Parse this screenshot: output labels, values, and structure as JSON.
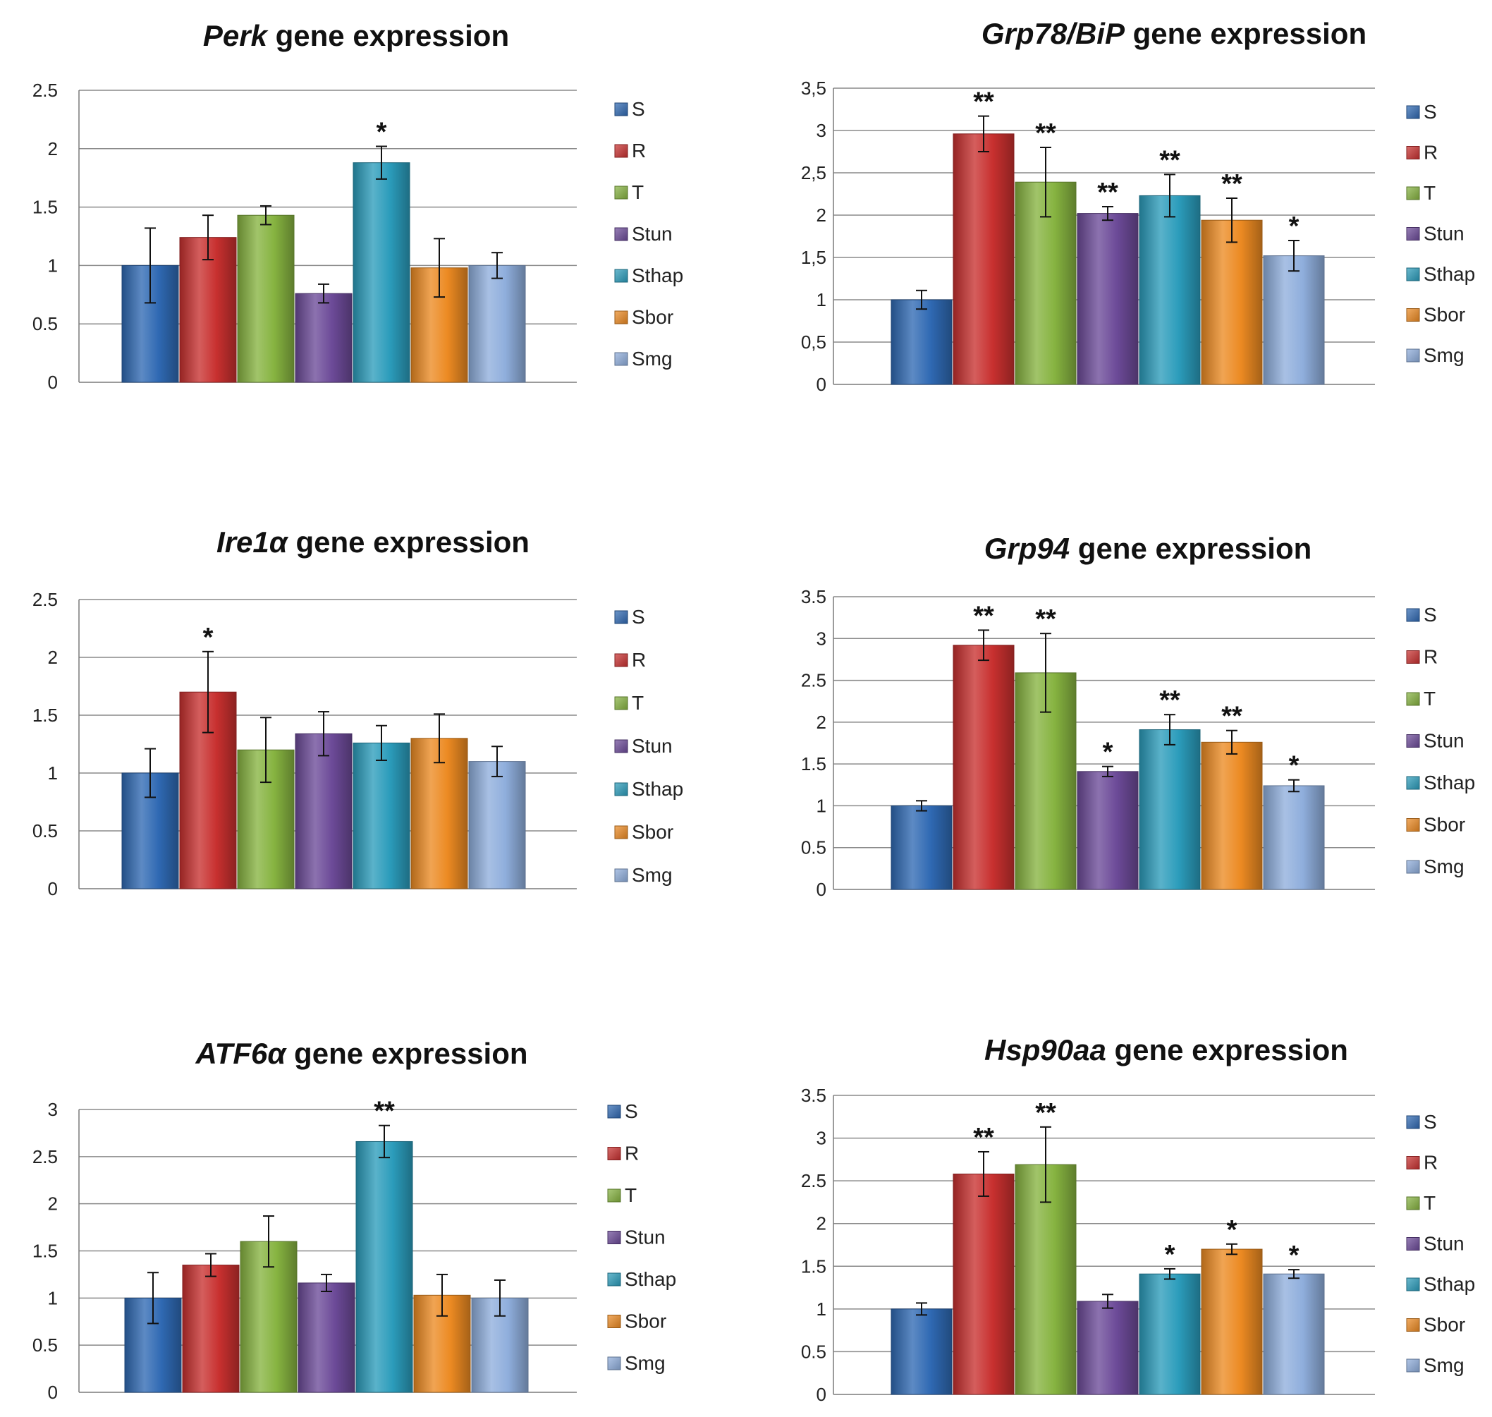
{
  "legend_labels": [
    "S",
    "R",
    "T",
    "Stun",
    "Sthap",
    "Sbor",
    "Smg"
  ],
  "series_colors": [
    "#2f69b3",
    "#c8302f",
    "#86b340",
    "#6c4a98",
    "#2b9cbb",
    "#ec8a22",
    "#8faedc"
  ],
  "chart_data": [
    {
      "type": "bar",
      "title_italic": "Perk",
      "title_rest": " gene expression",
      "categories": [
        "S",
        "R",
        "T",
        "Stun",
        "Sthap",
        "Sbor",
        "Smg"
      ],
      "values": [
        1.0,
        1.24,
        1.43,
        0.76,
        1.88,
        0.98,
        1.0
      ],
      "errors": [
        0.32,
        0.19,
        0.08,
        0.08,
        0.14,
        0.25,
        0.11
      ],
      "significance": [
        "",
        "",
        "",
        "",
        "*",
        "",
        ""
      ],
      "ylim": [
        0,
        2.5
      ],
      "yticks": [
        "0",
        "0.5",
        "1",
        "1.5",
        "2",
        "2.5"
      ],
      "grid": true,
      "legend_position": "right"
    },
    {
      "type": "bar",
      "title_italic": "Grp78/BiP",
      "title_rest": " gene expression",
      "categories": [
        "S",
        "R",
        "T",
        "Stun",
        "Sthap",
        "Sbor",
        "Smg"
      ],
      "values": [
        1.0,
        2.96,
        2.39,
        2.02,
        2.23,
        1.94,
        1.52
      ],
      "errors": [
        0.11,
        0.21,
        0.41,
        0.08,
        0.25,
        0.26,
        0.18
      ],
      "significance": [
        "",
        "**",
        "**",
        "**",
        "**",
        "**",
        "*"
      ],
      "ylim": [
        0,
        3.5
      ],
      "yticks": [
        "0",
        "0,5",
        "1",
        "1,5",
        "2",
        "2,5",
        "3",
        "3,5"
      ],
      "grid": true,
      "legend_position": "right"
    },
    {
      "type": "bar",
      "title_italic": "Ire1α",
      "title_rest": " gene expression",
      "categories": [
        "S",
        "R",
        "T",
        "Stun",
        "Sthap",
        "Sbor",
        "Smg"
      ],
      "values": [
        1.0,
        1.7,
        1.2,
        1.34,
        1.26,
        1.3,
        1.1
      ],
      "errors": [
        0.21,
        0.35,
        0.28,
        0.19,
        0.15,
        0.21,
        0.13
      ],
      "significance": [
        "",
        "*",
        "",
        "",
        "",
        "",
        ""
      ],
      "ylim": [
        0,
        2.5
      ],
      "yticks": [
        "0",
        "0.5",
        "1",
        "1.5",
        "2",
        "2.5"
      ],
      "grid": true,
      "legend_position": "right"
    },
    {
      "type": "bar",
      "title_italic": "Grp94",
      "title_rest": " gene expression",
      "categories": [
        "S",
        "R",
        "T",
        "Stun",
        "Sthap",
        "Sbor",
        "Smg"
      ],
      "values": [
        1.0,
        2.92,
        2.59,
        1.41,
        1.91,
        1.76,
        1.24
      ],
      "errors": [
        0.06,
        0.18,
        0.47,
        0.06,
        0.18,
        0.14,
        0.07
      ],
      "significance": [
        "",
        "**",
        "**",
        "*",
        "**",
        "**",
        "*"
      ],
      "ylim": [
        0,
        3.5
      ],
      "yticks": [
        "0",
        "0.5",
        "1",
        "1.5",
        "2",
        "2.5",
        "3",
        "3.5"
      ],
      "grid": true,
      "legend_position": "right"
    },
    {
      "type": "bar",
      "title_italic": "ATF6α",
      "title_rest": " gene expression",
      "categories": [
        "S",
        "R",
        "T",
        "Stun",
        "Sthap",
        "Sbor",
        "Smg"
      ],
      "values": [
        1.0,
        1.35,
        1.6,
        1.16,
        2.66,
        1.03,
        1.0
      ],
      "errors": [
        0.27,
        0.12,
        0.27,
        0.09,
        0.17,
        0.22,
        0.19
      ],
      "significance": [
        "",
        "",
        "",
        "",
        "**",
        "",
        ""
      ],
      "ylim": [
        0,
        3
      ],
      "yticks": [
        "0",
        "0.5",
        "1",
        "1.5",
        "2",
        "2.5",
        "3"
      ],
      "grid": true,
      "legend_position": "right"
    },
    {
      "type": "bar",
      "title_italic": "Hsp90aa",
      "title_rest": " gene expression",
      "categories": [
        "S",
        "R",
        "T",
        "Stun",
        "Sthap",
        "Sbor",
        "Smg"
      ],
      "values": [
        1.0,
        2.58,
        2.69,
        1.09,
        1.41,
        1.7,
        1.41
      ],
      "errors": [
        0.07,
        0.26,
        0.44,
        0.08,
        0.06,
        0.06,
        0.05
      ],
      "significance": [
        "",
        "**",
        "**",
        "",
        "*",
        "*",
        "*"
      ],
      "ylim": [
        0,
        3.5
      ],
      "yticks": [
        "0",
        "0.5",
        "1",
        "1.5",
        "2",
        "2.5",
        "3",
        "3.5"
      ],
      "grid": true,
      "legend_position": "right"
    }
  ]
}
